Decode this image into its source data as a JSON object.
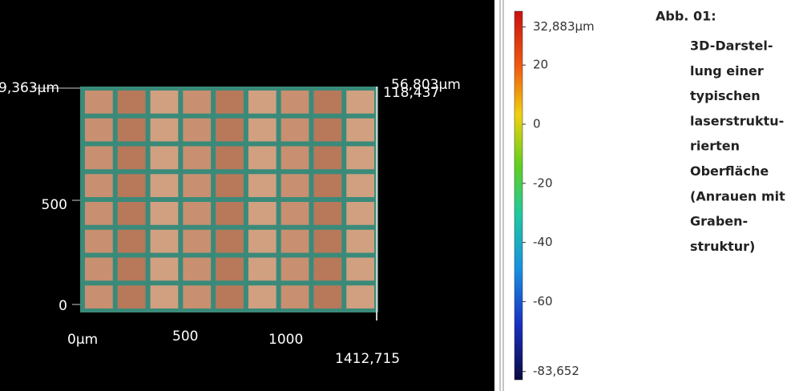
{
  "image": {
    "axis_labels": {
      "y_top_left": "9,363µm",
      "z_top_right": "56,803µm",
      "y_top_right": "118,437",
      "y_mid": "500",
      "y_zero": "0",
      "x_zero": "0µm",
      "x_mid": "500",
      "x_1000": "1000",
      "x_end": "1412,715"
    }
  },
  "colorbar": {
    "ticks": [
      {
        "value": 32.883,
        "label": "32,883µm"
      },
      20,
      0,
      -20,
      -40,
      -60,
      {
        "value": -83.652,
        "label": "-83,652"
      }
    ]
  },
  "caption": {
    "label": "Abb. 01:",
    "lines": [
      "3D-Darstel-",
      "lung einer",
      "typischen",
      "laserstruktu-",
      "rierten",
      "Oberfläche",
      "(Anrauen mit",
      "Graben-",
      "struktur)"
    ]
  }
}
